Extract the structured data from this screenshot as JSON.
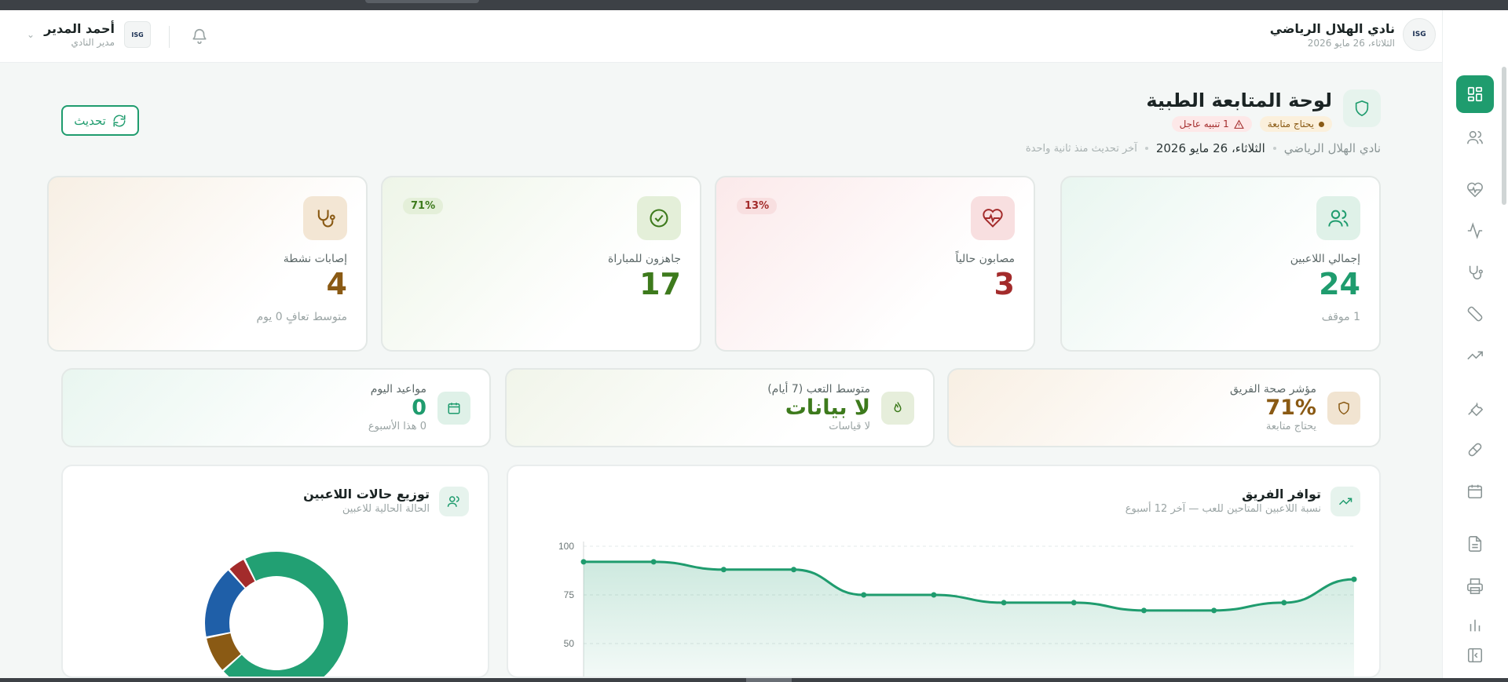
{
  "header": {
    "club_name": "نادي الهلال الرياضي",
    "club_date": "الثلاثاء، 26 مايو 2026",
    "logo_text": "ISG",
    "user_name": "أحمد المدير",
    "user_role": "مدير النادي"
  },
  "page": {
    "title": "لوحة المتابعة الطبية",
    "badge_follow": "يحتاج متابعة",
    "badge_urgent": "1 تنبيه عاجل",
    "club": "نادي الهلال الرياضي",
    "date": "الثلاثاء، 26 مايو 2026",
    "updated": "آخر تحديث منذ ثانية واحدة",
    "refresh_label": "تحديث"
  },
  "stats": [
    {
      "label": "إجمالي اللاعبين",
      "value": "24",
      "sub": "1 موقف",
      "color": "#1f9c6e",
      "icon": "users-icon"
    },
    {
      "label": "مصابون حالياً",
      "value": "3",
      "pct": "13%",
      "color": "#a32b2b",
      "icon": "heart-pulse-icon"
    },
    {
      "label": "جاهزون للمباراة",
      "value": "17",
      "pct": "71%",
      "color": "#3d7a1c",
      "icon": "check-circle-icon"
    },
    {
      "label": "إصابات نشطة",
      "value": "4",
      "sub": "متوسط تعافٍ 0 يوم",
      "color": "#8a5a14",
      "icon": "stethoscope-icon"
    }
  ],
  "mid": [
    {
      "label": "مؤشر صحة الفريق",
      "value": "71%",
      "sub": "يحتاج متابعة",
      "color": "#8a5a14",
      "icon": "shield-icon"
    },
    {
      "label": "متوسط التعب (7 أيام)",
      "value": "لا بيانات",
      "sub": "لا قياسات",
      "color": "#3d7a1c",
      "icon": "flame-icon"
    },
    {
      "label": "مواعيد اليوم",
      "value": "0",
      "sub": "0 هذا الأسبوع",
      "color": "#1f9c6e",
      "icon": "calendar-icon"
    }
  ],
  "availability": {
    "title": "توافر الفريق",
    "subtitle": "نسبة اللاعبين المتاحين للعب — آخر 12 أسبوع"
  },
  "distribution": {
    "title": "توزيع حالات اللاعبين",
    "subtitle": "الحالة الحالية للاعبين"
  },
  "chart_data": [
    {
      "type": "area",
      "x": [
        1,
        2,
        3,
        4,
        5,
        6,
        7,
        8,
        9,
        10,
        11,
        12
      ],
      "values": [
        92,
        92,
        88,
        88,
        75,
        75,
        71,
        71,
        67,
        67,
        71,
        83
      ],
      "ylim": [
        0,
        100
      ],
      "yticks": [
        "100",
        "75",
        "50"
      ],
      "grid": true,
      "color": "#1f9c6e"
    },
    {
      "type": "pie",
      "values": [
        17,
        2,
        4,
        1
      ],
      "colors": [
        "#22a073",
        "#8a5a14",
        "#1f5fa8",
        "#a32b2b"
      ]
    }
  ]
}
